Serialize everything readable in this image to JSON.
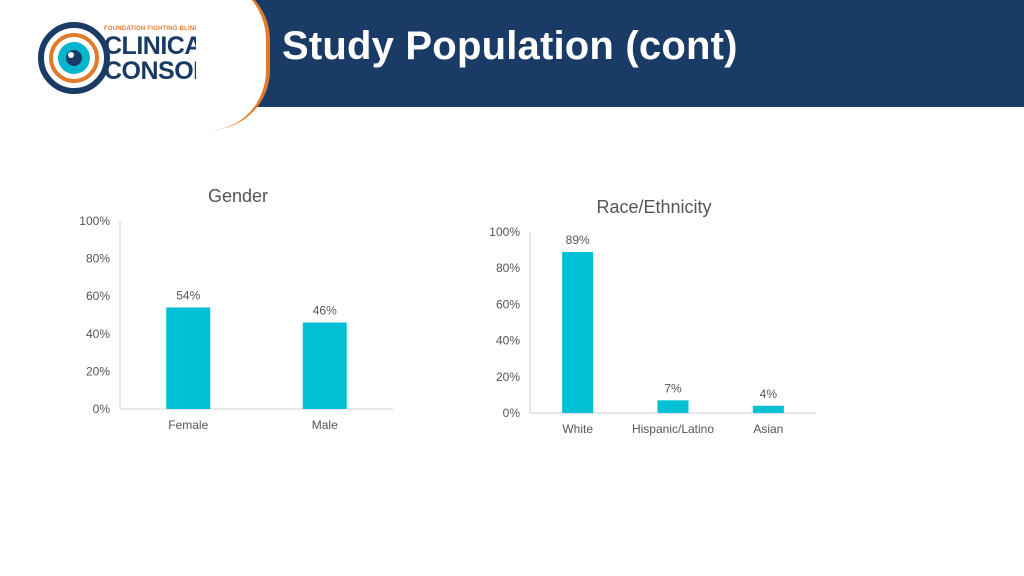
{
  "header": {
    "title": "Study Population (cont)"
  },
  "logo": {
    "tagline": "FOUNDATION FIGHTING BLINDNESS",
    "line1": "CLINICAL",
    "line2": "CONSORTIUM"
  },
  "colors": {
    "header_bg": "#1a3b66",
    "bar": "#00c0d6",
    "accent": "#e07b2c"
  },
  "chart_data": [
    {
      "type": "bar",
      "title": "Gender",
      "categories": [
        "Female",
        "Male"
      ],
      "values": [
        54,
        46
      ],
      "data_labels": [
        "54%",
        "46%"
      ],
      "y_ticks": [
        "0%",
        "20%",
        "40%",
        "60%",
        "80%",
        "100%"
      ],
      "ylim": [
        0,
        100
      ],
      "grid": false
    },
    {
      "type": "bar",
      "title": "Race/Ethnicity",
      "categories": [
        "White",
        "Hispanic/Latino",
        "Asian"
      ],
      "values": [
        89,
        7,
        4
      ],
      "data_labels": [
        "89%",
        "7%",
        "4%"
      ],
      "y_ticks": [
        "0%",
        "20%",
        "40%",
        "60%",
        "80%",
        "100%"
      ],
      "ylim": [
        0,
        100
      ],
      "grid": false
    }
  ]
}
